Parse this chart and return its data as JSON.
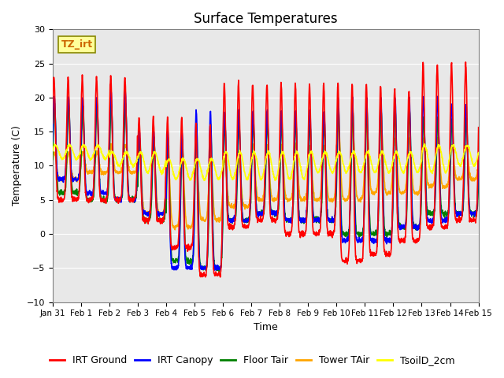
{
  "title": "Surface Temperatures",
  "xlabel": "Time",
  "ylabel": "Temperature (C)",
  "ylim": [
    -10,
    30
  ],
  "yticks": [
    -10,
    -5,
    0,
    5,
    10,
    15,
    20,
    25,
    30
  ],
  "xtick_labels": [
    "Jan 31",
    "Feb 1",
    "Feb 2",
    "Feb 3",
    "Feb 4",
    "Feb 5",
    "Feb 6",
    "Feb 7",
    "Feb 8",
    "Feb 9",
    "Feb 10",
    "Feb 11",
    "Feb 12",
    "Feb 13",
    "Feb 14",
    "Feb 15"
  ],
  "legend_entries": [
    "IRT Ground",
    "IRT Canopy",
    "Floor Tair",
    "Tower TAir",
    "TsoilD_2cm"
  ],
  "line_colors": [
    "red",
    "blue",
    "green",
    "orange",
    "yellow"
  ],
  "annotation_text": "TZ_irt",
  "annotation_color": "#cc6600",
  "annotation_bg": "#ffff99",
  "background_color": "#e8e8e8",
  "grid_color": "white",
  "title_fontsize": 12,
  "axis_fontsize": 9,
  "legend_fontsize": 9,
  "linewidth": 1.2
}
